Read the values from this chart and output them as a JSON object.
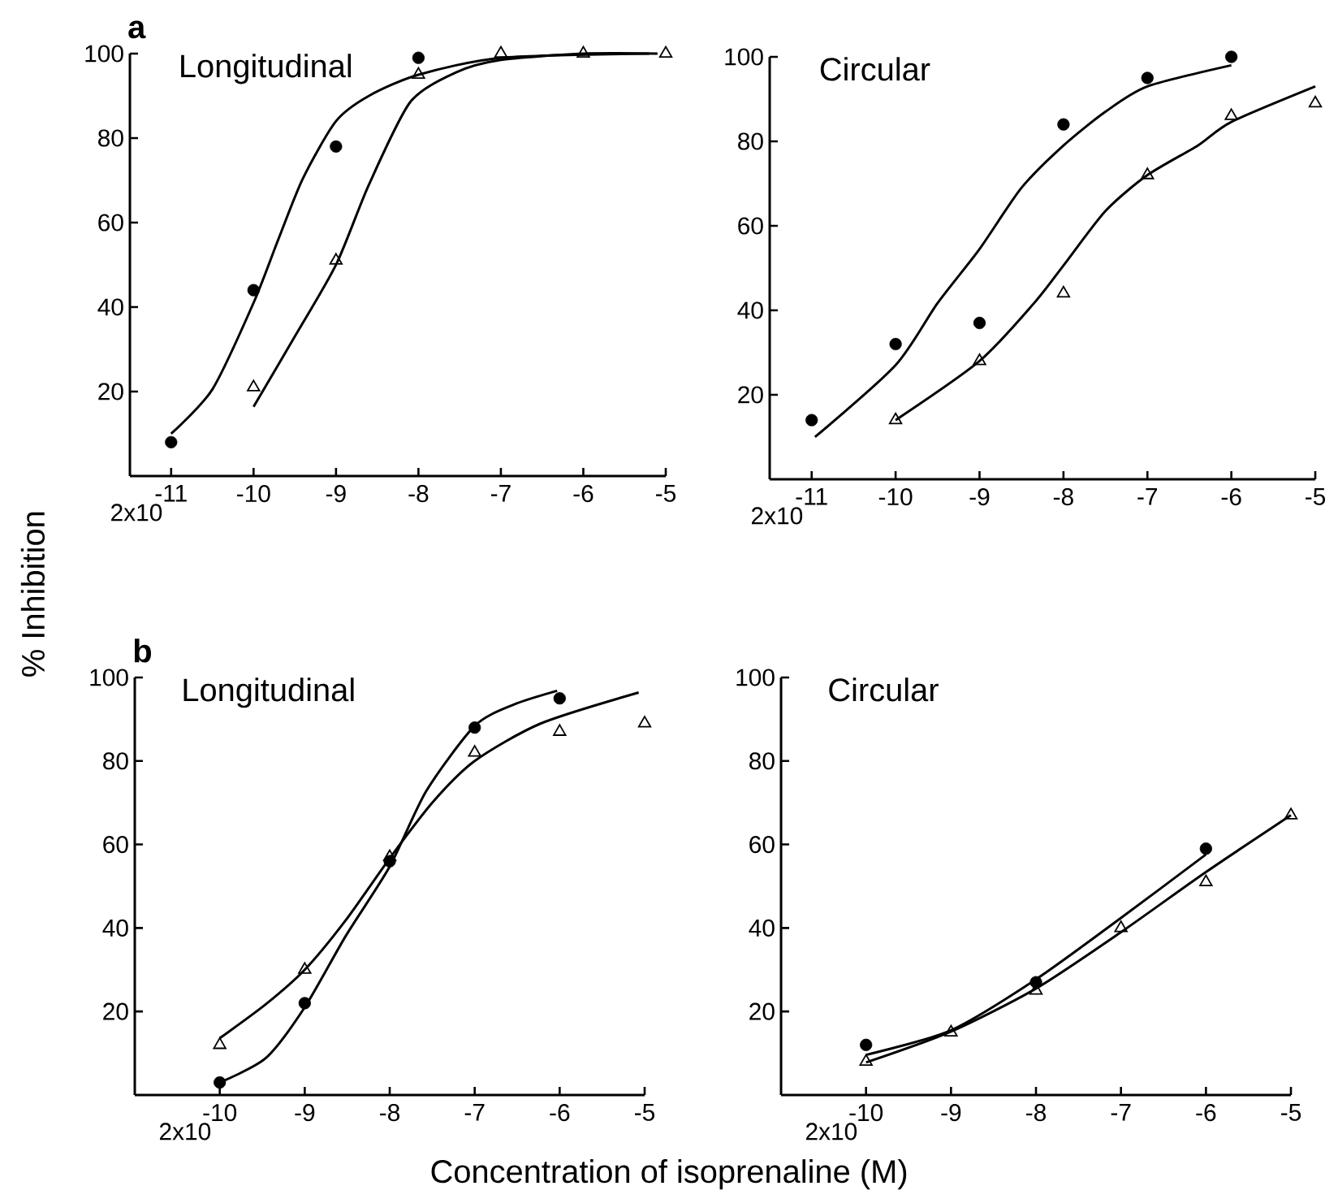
{
  "chart_data": [
    {
      "type": "scatter",
      "title": "Longitudinal",
      "annotations": [
        "2x10",
        "a"
      ],
      "xlim": [
        -11.5,
        -5
      ],
      "ylim": [
        0,
        100
      ],
      "xticks": [
        -11,
        -10,
        -9,
        -8,
        -7,
        -6,
        -5
      ],
      "yticks": [
        20,
        40,
        60,
        80,
        100
      ],
      "series": [
        {
          "color": "#000000",
          "marker": "circle",
          "x": [
            -11,
            -10,
            -9,
            -8
          ],
          "values": [
            8,
            44,
            78,
            99
          ]
        },
        {
          "color": "#000000",
          "marker": "triangle",
          "x": [
            -10,
            -9,
            -8,
            -7,
            -6,
            -5
          ],
          "values": [
            21,
            51,
            95,
            100,
            100,
            100
          ]
        },
        {
          "type": "line",
          "color": "#000000",
          "marker": "none",
          "x": [
            -11,
            -10.5,
            -10,
            -9.7,
            -9.4,
            -9,
            -8.6,
            -8,
            -7,
            -5.2
          ],
          "values": [
            10,
            20.5,
            41,
            56,
            70.5,
            84,
            90,
            95,
            99,
            100
          ]
        },
        {
          "type": "line",
          "color": "#000000",
          "marker": "none",
          "x": [
            -10,
            -9.5,
            -9,
            -8.6,
            -8.1,
            -7.55,
            -7,
            -6,
            -5.1
          ],
          "values": [
            16.4,
            33,
            50,
            69,
            88.5,
            95.5,
            98.5,
            100,
            100
          ]
        }
      ]
    },
    {
      "type": "scatter",
      "title": "Circular",
      "annotations": [
        "2x10"
      ],
      "xlim": [
        -11.5,
        -5
      ],
      "ylim": [
        0,
        100
      ],
      "xticks": [
        -11,
        -10,
        -9,
        -8,
        -7,
        -6,
        -5
      ],
      "yticks": [
        20,
        40,
        60,
        80,
        100
      ],
      "series": [
        {
          "color": "#000000",
          "marker": "circle",
          "x": [
            -11,
            -10,
            -9,
            -8,
            -7,
            -6
          ],
          "values": [
            14,
            32,
            37,
            84,
            95,
            100
          ]
        },
        {
          "color": "#000000",
          "marker": "triangle",
          "x": [
            -10,
            -9,
            -8,
            -7,
            -6,
            -5
          ],
          "values": [
            14,
            28,
            44,
            72,
            86,
            89
          ]
        },
        {
          "type": "line",
          "color": "#000000",
          "marker": "none",
          "x": [
            -10.96,
            -10,
            -9.5,
            -9,
            -8.5,
            -8,
            -7.5,
            -7,
            -6
          ],
          "values": [
            10,
            27,
            41.7,
            54.5,
            69,
            79,
            87,
            93,
            98
          ]
        },
        {
          "type": "line",
          "color": "#000000",
          "marker": "none",
          "x": [
            -10,
            -9,
            -8.35,
            -8,
            -7.5,
            -7,
            -6.4,
            -6,
            -5
          ],
          "values": [
            14,
            28,
            41.7,
            50.6,
            63.5,
            72,
            79,
            84.6,
            93
          ]
        }
      ]
    },
    {
      "type": "scatter",
      "title": "Longitudinal",
      "annotations": [
        "2x10",
        "b"
      ],
      "xlabel": "Concentration of isoprenaline (M)",
      "ylabel": "% Inhibition",
      "xlim": [
        -11,
        -5
      ],
      "ylim": [
        0,
        100
      ],
      "xticks": [
        -10,
        -9,
        -8,
        -7,
        -6,
        -5
      ],
      "yticks": [
        20,
        40,
        60,
        80,
        100
      ],
      "series": [
        {
          "color": "#000000",
          "marker": "circle",
          "x": [
            -10,
            -9,
            -8,
            -7,
            -6
          ],
          "values": [
            3,
            22,
            56,
            88,
            95
          ]
        },
        {
          "color": "#000000",
          "marker": "triangle",
          "x": [
            -10,
            -9,
            -8,
            -7,
            -6,
            -5
          ],
          "values": [
            12,
            30,
            57,
            82,
            87,
            89
          ]
        },
        {
          "type": "line",
          "color": "#000000",
          "marker": "none",
          "x": [
            -10,
            -9.46,
            -9,
            -8.52,
            -8,
            -7.57,
            -7,
            -6.54,
            -6.03
          ],
          "values": [
            3,
            8.8,
            21,
            38,
            54.7,
            72.8,
            88.4,
            93.5,
            96.8
          ]
        },
        {
          "type": "line",
          "color": "#000000",
          "marker": "none",
          "x": [
            -10,
            -9.46,
            -9,
            -8.52,
            -8,
            -7.5,
            -7,
            -6.22,
            -5.07
          ],
          "values": [
            13.6,
            21.7,
            30,
            41.8,
            56.7,
            70,
            80,
            89,
            96.4
          ]
        }
      ]
    },
    {
      "type": "scatter",
      "title": "Circular",
      "annotations": [
        "2x10"
      ],
      "xlim": [
        -11,
        -5
      ],
      "ylim": [
        0,
        100
      ],
      "xticks": [
        -10,
        -9,
        -8,
        -7,
        -6,
        -5
      ],
      "yticks": [
        20,
        40,
        60,
        80,
        100
      ],
      "series": [
        {
          "color": "#000000",
          "marker": "circle",
          "x": [
            -10,
            -8,
            -6
          ],
          "values": [
            12,
            27,
            59
          ]
        },
        {
          "color": "#000000",
          "marker": "triangle",
          "x": [
            -10,
            -9,
            -8,
            -7,
            -6,
            -5
          ],
          "values": [
            8,
            15,
            25,
            40,
            51,
            67
          ]
        },
        {
          "type": "line",
          "color": "#000000",
          "marker": "none",
          "x": [
            -10,
            -9,
            -8,
            -7,
            -6
          ],
          "values": [
            9.6,
            15.5,
            27.7,
            42.4,
            57.6
          ]
        },
        {
          "type": "line",
          "color": "#000000",
          "marker": "none",
          "x": [
            -10,
            -9,
            -8,
            -7,
            -6,
            -5
          ],
          "values": [
            7.8,
            15.2,
            25.5,
            39,
            53.4,
            67
          ]
        }
      ]
    }
  ]
}
